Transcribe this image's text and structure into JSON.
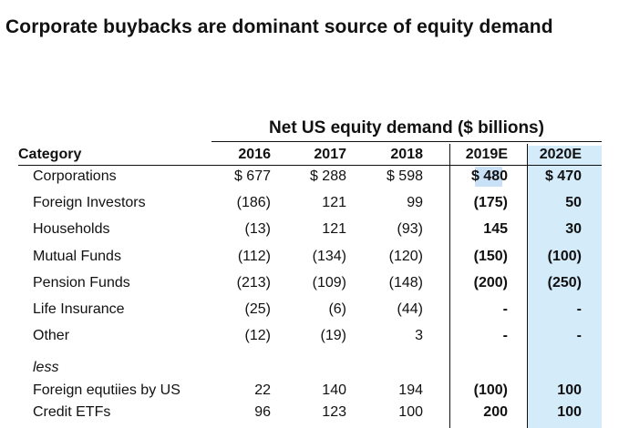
{
  "title": "Corporate buybacks are dominant source of equity demand",
  "table": {
    "group_header": "Net US equity demand ($ billions)",
    "headers": {
      "category": "Category",
      "y2016": "2016",
      "y2017": "2017",
      "y2018": "2018",
      "y2019e": "2019E",
      "y2020e": "2020E"
    },
    "rows": [
      {
        "label": "Corporations",
        "values": [
          "$ 677",
          "$ 288",
          "$ 598",
          "$ 480",
          "$ 470"
        ]
      },
      {
        "label": "Foreign Investors",
        "values": [
          "(186)",
          "121",
          "99",
          "(175)",
          "50"
        ]
      },
      {
        "label": "Households",
        "values": [
          "(13)",
          "121",
          "(93)",
          "145",
          "30"
        ]
      },
      {
        "label": "Mutual Funds",
        "values": [
          "(112)",
          "(134)",
          "(120)",
          "(150)",
          "(100)"
        ]
      },
      {
        "label": "Pension Funds",
        "values": [
          "(213)",
          "(109)",
          "(148)",
          "(200)",
          "(250)"
        ]
      },
      {
        "label": "Life Insurance",
        "values": [
          "(25)",
          "(6)",
          "(44)",
          "-",
          "-"
        ]
      },
      {
        "label": "Other",
        "values": [
          "(12)",
          "(19)",
          "3",
          "-",
          "-"
        ]
      }
    ],
    "less_label": "less",
    "less_rows": [
      {
        "label": "Foreign equtiies by US",
        "values": [
          "22",
          "140",
          "194",
          "(100)",
          "100"
        ]
      },
      {
        "label": "Credit ETFs",
        "values": [
          "96",
          "123",
          "100",
          "200",
          "100"
        ]
      }
    ]
  },
  "colors": {
    "highlight_column": "#d4ebfa",
    "selection": "#c9e1f7",
    "text": "#111111"
  }
}
